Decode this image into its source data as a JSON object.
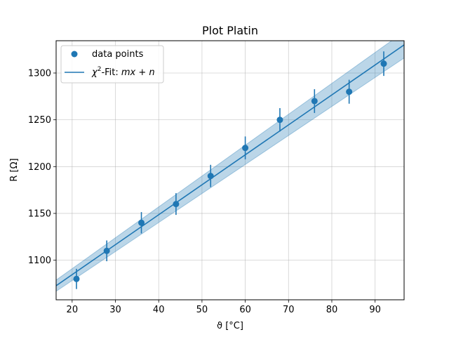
{
  "chart_data": {
    "type": "scatter",
    "title": "Plot Platin",
    "xlabel": "ϑ [°C]",
    "ylabel": "R [Ω]",
    "xlim": [
      16.3,
      96.7
    ],
    "ylim": [
      1057.7,
      1334.5
    ],
    "xticks": [
      20,
      30,
      40,
      50,
      60,
      70,
      80,
      90
    ],
    "yticks": [
      1100,
      1150,
      1200,
      1250,
      1300
    ],
    "grid": true,
    "legend_position": "upper left",
    "series": [
      {
        "name": "data points",
        "kind": "errorbar",
        "color": "#1f77b4",
        "x": [
          21,
          28,
          36,
          44,
          52,
          60,
          68,
          76,
          84,
          92
        ],
        "y": [
          1080,
          1110,
          1140,
          1160,
          1190,
          1220,
          1250,
          1270,
          1280,
          1310
        ],
        "yerr": [
          10.8,
          11.1,
          11.4,
          11.6,
          11.9,
          12.2,
          12.5,
          12.7,
          12.8,
          13.1
        ]
      },
      {
        "name": "χ²-Fit: mx + n",
        "kind": "fit",
        "color": "#1f77b4",
        "slope": 3.2,
        "intercept": 1020.6,
        "band_halfwidth_at_x": [
          [
            16.3,
            6
          ],
          [
            96.7,
            14
          ]
        ]
      }
    ],
    "legend": {
      "marker_label": "data points",
      "line_label_prefix": "χ",
      "line_label_sup": "2",
      "line_label_mid": "-Fit: ",
      "line_label_math": "mx + n"
    }
  }
}
